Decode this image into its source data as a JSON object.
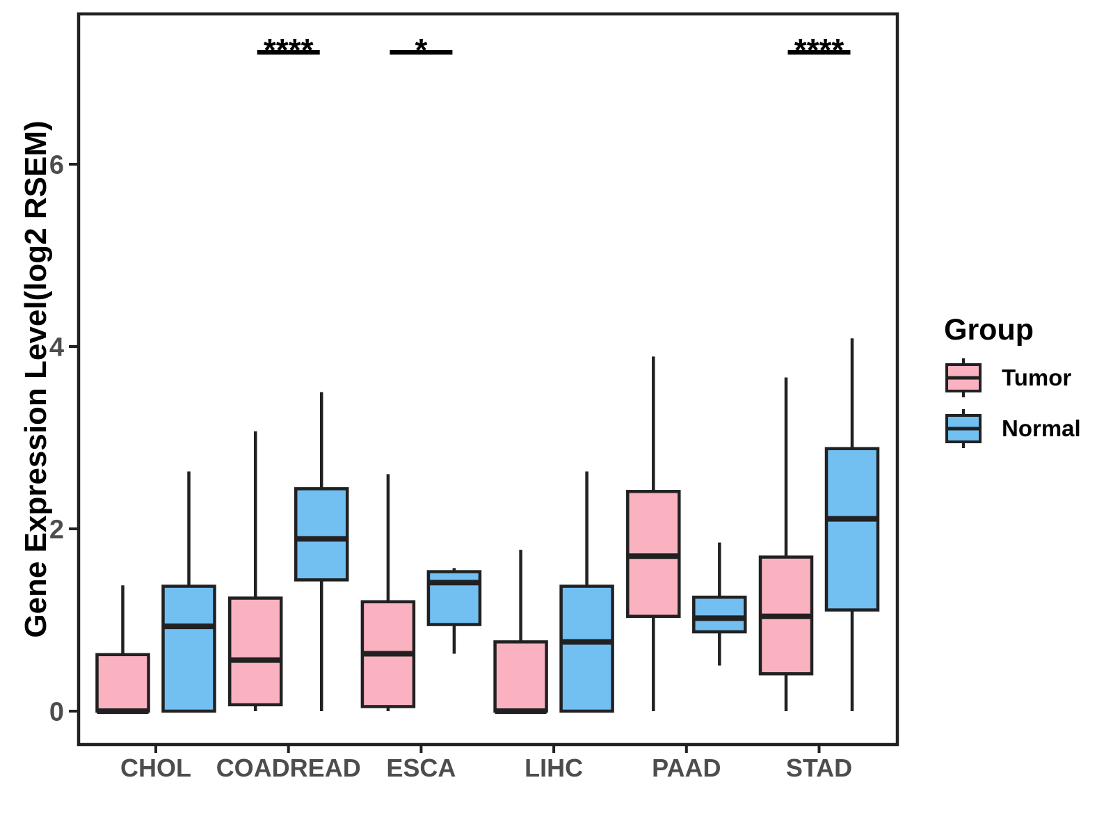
{
  "figure": {
    "background": "#FFFFFF"
  },
  "colors": {
    "box_border": "#212121",
    "axis_line": "#212121",
    "axis_text": "#4D4D4D",
    "title_text": "#000000",
    "significance_text": "#000000"
  },
  "chart_data": {
    "type": "box",
    "title": "",
    "xlabel": "",
    "ylabel": "Gene Expression Level(log2 RSEM)",
    "categories": [
      "CHOL",
      "COADREAD",
      "ESCA",
      "LIHC",
      "PAAD",
      "STAD"
    ],
    "yticks": [
      0,
      2,
      4,
      6
    ],
    "ylim": [
      -0.37,
      7.65
    ],
    "grid": false,
    "panel_border": true,
    "legend": {
      "title": "Group",
      "position": "right",
      "entries": [
        {
          "label": "Tumor",
          "color": "#FAB2C1"
        },
        {
          "label": "Normal",
          "color": "#72BFF2"
        }
      ]
    },
    "series": [
      {
        "name": "Tumor",
        "color": "#FAB2C1",
        "boxes": [
          {
            "category": "CHOL",
            "min": 0,
            "q1": 0,
            "median": 0,
            "q3": 0.62,
            "max": 1.38
          },
          {
            "category": "COADREAD",
            "min": 0,
            "q1": 0.07,
            "median": 0.56,
            "q3": 1.24,
            "max": 3.07
          },
          {
            "category": "ESCA",
            "min": 0,
            "q1": 0.05,
            "median": 0.63,
            "q3": 1.2,
            "max": 2.6
          },
          {
            "category": "LIHC",
            "min": 0,
            "q1": 0,
            "median": 0,
            "q3": 0.76,
            "max": 1.77
          },
          {
            "category": "PAAD",
            "min": 0,
            "q1": 1.04,
            "median": 1.7,
            "q3": 2.41,
            "max": 3.89
          },
          {
            "category": "STAD",
            "min": 0,
            "q1": 0.41,
            "median": 1.04,
            "q3": 1.69,
            "max": 3.66
          }
        ]
      },
      {
        "name": "Normal",
        "color": "#72BFF2",
        "boxes": [
          {
            "category": "CHOL",
            "min": 0,
            "q1": 0,
            "median": 0.93,
            "q3": 1.37,
            "max": 2.63
          },
          {
            "category": "COADREAD",
            "min": 0,
            "q1": 1.44,
            "median": 1.89,
            "q3": 2.44,
            "max": 3.5
          },
          {
            "category": "ESCA",
            "min": 0.63,
            "q1": 0.95,
            "median": 1.41,
            "q3": 1.53,
            "max": 1.57
          },
          {
            "category": "LIHC",
            "min": 0,
            "q1": 0,
            "median": 0.76,
            "q3": 1.37,
            "max": 2.63
          },
          {
            "category": "PAAD",
            "min": 0.5,
            "q1": 0.87,
            "median": 1.02,
            "q3": 1.25,
            "max": 1.85
          },
          {
            "category": "STAD",
            "min": 0,
            "q1": 1.11,
            "median": 2.11,
            "q3": 2.88,
            "max": 4.09
          }
        ]
      }
    ],
    "significance": [
      {
        "category": "COADREAD",
        "label": "****"
      },
      {
        "category": "ESCA",
        "label": "*"
      },
      {
        "category": "STAD",
        "label": "****"
      }
    ]
  }
}
